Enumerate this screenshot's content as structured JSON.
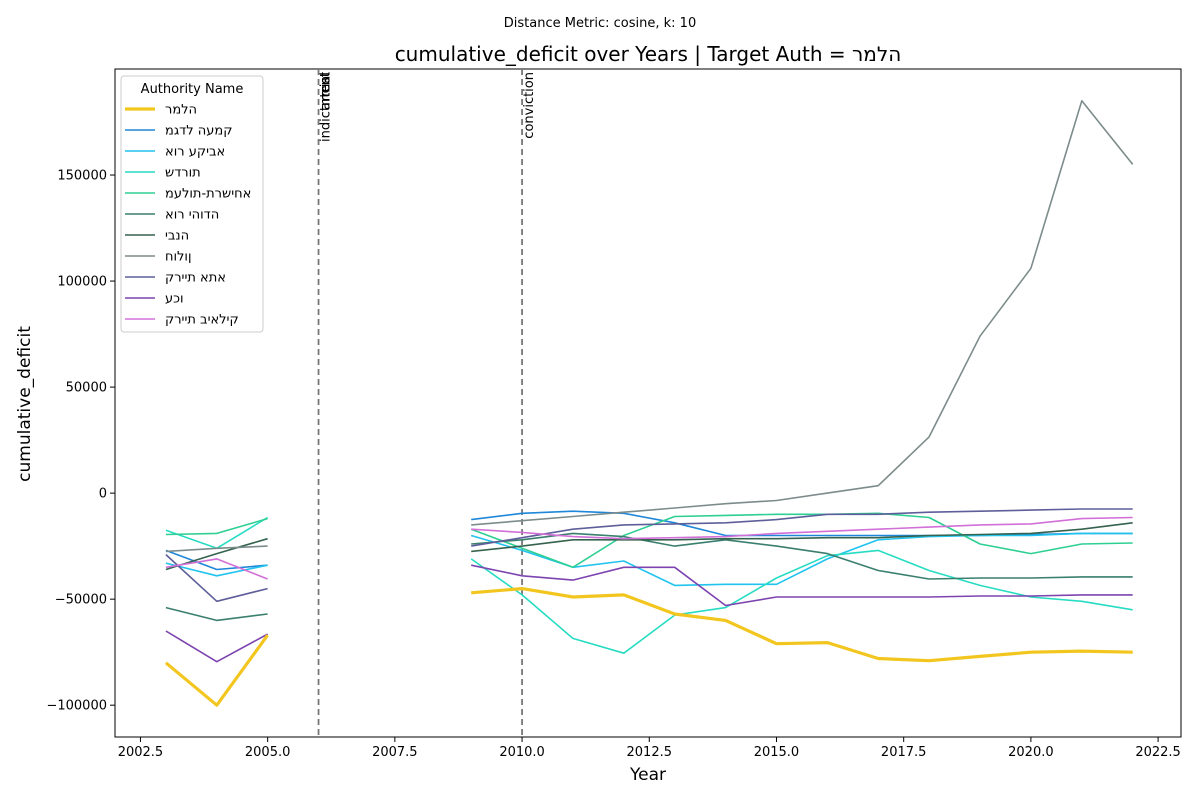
{
  "chart_data": {
    "type": "line",
    "suptitle": "Distance Metric: cosine, k: 10",
    "title": "cumulative_deficit over Years | Target Auth = הלמר",
    "xlabel": "Year",
    "ylabel": "cumulative_deficit",
    "xlim": [
      2002.0,
      2022.95
    ],
    "ylim": [
      -115000,
      200000
    ],
    "xticks": [
      2002.5,
      2005.0,
      2007.5,
      2010.0,
      2012.5,
      2015.0,
      2017.5,
      2020.0,
      2022.5
    ],
    "xtick_labels": [
      "2002.5",
      "2005.0",
      "2007.5",
      "2010.0",
      "2012.5",
      "2015.0",
      "2017.5",
      "2020.0",
      "2022.5"
    ],
    "yticks": [
      -100000,
      -50000,
      0,
      50000,
      100000,
      150000
    ],
    "ytick_labels": [
      "−100000",
      "−50000",
      "0",
      "50000",
      "100000",
      "150000"
    ],
    "grid": false,
    "legend_title": "Authority Name",
    "legend_position": "top-left",
    "vlines": [
      {
        "x": 2006,
        "labels": [
          "indictment",
          "arrest",
          "trial"
        ]
      },
      {
        "x": 2010,
        "labels": [
          "conviction"
        ]
      }
    ],
    "x": [
      2003,
      2004,
      2005,
      2009,
      2010,
      2011,
      2012,
      2013,
      2014,
      2015,
      2016,
      2017,
      2018,
      2019,
      2020,
      2021,
      2022
    ],
    "series": [
      {
        "name": "הלמר",
        "color": "#f2c61f",
        "width": 3.2,
        "values": [
          -80000,
          -100000,
          -67000,
          -47000,
          -45000,
          -49000,
          -48000,
          -57000,
          -60000,
          -71000,
          -70500,
          -78000,
          -79000,
          -77000,
          -75000,
          -74500,
          -75000
        ]
      },
      {
        "name": "קמעה לדגמ",
        "color": "#1f87d9",
        "width": 1.6,
        "values": [
          -27000,
          -36000,
          -34000,
          -12500,
          -9500,
          -8500,
          -9500,
          -14000,
          -20000,
          -20000,
          -20000,
          -20000,
          -20000,
          -20000,
          -19500,
          -19000,
          -19000
        ]
      },
      {
        "name": "אביקע רוא",
        "color": "#21c3ef",
        "width": 1.6,
        "values": [
          -33000,
          -39000,
          -34000,
          -20000,
          -27000,
          -35000,
          -32000,
          -43500,
          -43000,
          -43000,
          -31000,
          -22000,
          -20500,
          -20000,
          -20000,
          -19000,
          -19000
        ]
      },
      {
        "name": "תורדש",
        "color": "#27dcc3",
        "width": 1.6,
        "values": [
          -17500,
          -26000,
          -11500,
          -31000,
          -48000,
          -68500,
          -75500,
          -57500,
          -54000,
          -40000,
          -29500,
          -27000,
          -36500,
          -43500,
          -49000,
          -51000,
          -55000
        ]
      },
      {
        "name": "אחישרת-תולעמ",
        "color": "#2ecf93",
        "width": 1.6,
        "values": [
          -19500,
          -19000,
          -12000,
          -17000,
          -26000,
          -35000,
          -20000,
          -11000,
          -10500,
          -10000,
          -10000,
          -9500,
          -11500,
          -24000,
          -28500,
          -24000,
          -23500
        ]
      },
      {
        "name": "הדוהי רוא",
        "color": "#3a7f6e",
        "width": 1.6,
        "values": [
          -54000,
          -60000,
          -57000,
          -24000,
          -22000,
          -19000,
          -20500,
          -25000,
          -22000,
          -25000,
          -28500,
          -36500,
          -40500,
          -40000,
          -40000,
          -39500,
          -39500
        ]
      },
      {
        "name": "הנבי",
        "color": "#36634f",
        "width": 1.6,
        "values": [
          -36000,
          -28500,
          -21500,
          -27500,
          -25000,
          -22000,
          -22000,
          -22000,
          -21500,
          -21500,
          -21000,
          -21000,
          -20000,
          -19500,
          -19000,
          -17000,
          -14000
        ]
      },
      {
        "name": "ןולוח",
        "color": "#7c8c8b",
        "width": 1.6,
        "values": [
          -27500,
          -26000,
          -25000,
          -15000,
          -13000,
          -11000,
          -9000,
          -7000,
          -5000,
          -3500,
          0,
          3500,
          26500,
          74000,
          106000,
          185000,
          155000
        ]
      },
      {
        "name": "אתא תיירק",
        "color": "#5e5f9a",
        "width": 1.6,
        "values": [
          -29000,
          -51000,
          -45000,
          -25000,
          -21000,
          -17000,
          -15000,
          -14500,
          -14000,
          -12500,
          -10000,
          -10000,
          -9000,
          -8500,
          -8000,
          -7500,
          -7500
        ]
      },
      {
        "name": "וכע",
        "color": "#7d44b0",
        "width": 1.6,
        "values": [
          -65000,
          -79500,
          -66500,
          -34000,
          -39000,
          -41000,
          -35000,
          -35000,
          -53000,
          -49000,
          -49000,
          -49000,
          -49000,
          -48500,
          -48500,
          -48000,
          -48000
        ]
      },
      {
        "name": "קילאיב תיירק",
        "color": "#d270d8",
        "width": 1.6,
        "values": [
          -35000,
          -31000,
          -40500,
          -17000,
          -18500,
          -20500,
          -21500,
          -21000,
          -20500,
          -19000,
          -18000,
          -17000,
          -16000,
          -15000,
          -14500,
          -12000,
          -11500
        ]
      }
    ]
  }
}
